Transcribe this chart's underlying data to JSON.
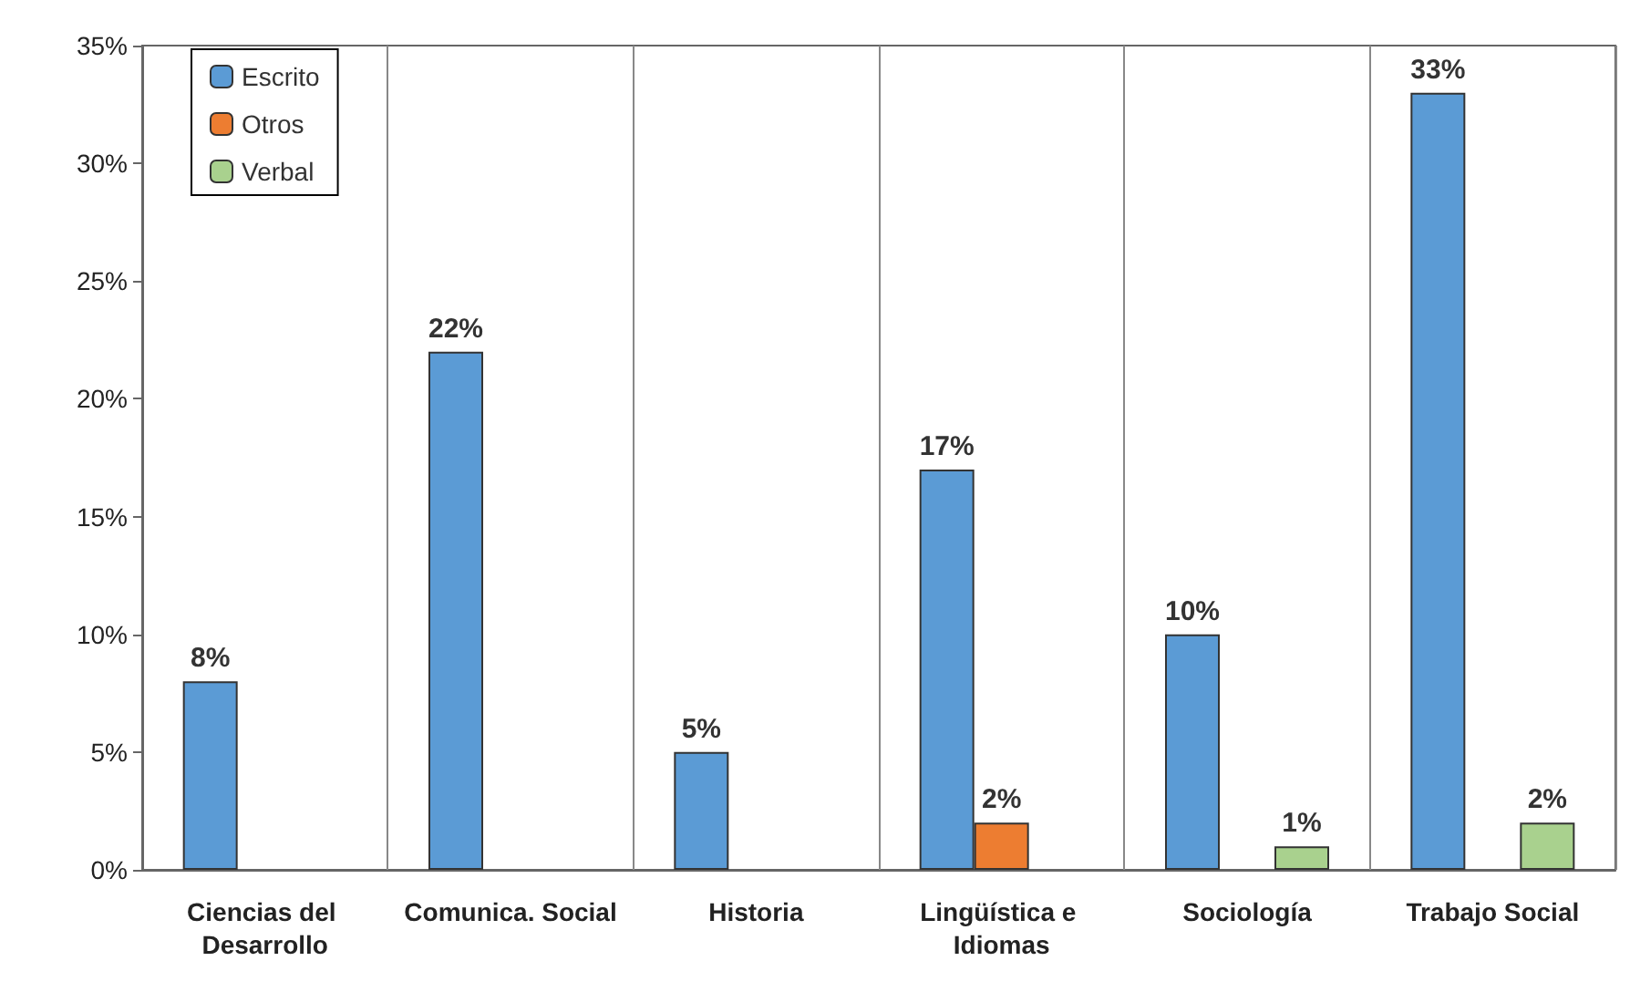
{
  "chart_data": {
    "type": "bar",
    "categories": [
      "Ciencias del Desarrollo",
      "Comunica. Social",
      "Historia",
      "Lingüística e Idiomas",
      "Sociología",
      "Trabajo Social"
    ],
    "series": [
      {
        "name": "Escrito",
        "color": "#5b9bd5",
        "values": [
          8,
          22,
          5,
          17,
          10,
          33
        ],
        "value_labels": [
          "8%",
          "22%",
          "5%",
          "17%",
          "10%",
          "33%"
        ]
      },
      {
        "name": "Otros",
        "color": "#ed7d31",
        "values": [
          null,
          null,
          null,
          2,
          null,
          null
        ],
        "value_labels": [
          null,
          null,
          null,
          "2%",
          null,
          null
        ]
      },
      {
        "name": "Verbal",
        "color": "#a9d18e",
        "values": [
          null,
          null,
          null,
          null,
          1,
          2
        ],
        "value_labels": [
          null,
          null,
          null,
          null,
          "1%",
          "2%"
        ]
      }
    ],
    "ylim": [
      0,
      35
    ],
    "yticks": [
      {
        "value": 0,
        "label": "0%"
      },
      {
        "value": 5,
        "label": "5%"
      },
      {
        "value": 10,
        "label": "10%"
      },
      {
        "value": 15,
        "label": "15%"
      },
      {
        "value": 20,
        "label": "20%"
      },
      {
        "value": 25,
        "label": "25%"
      },
      {
        "value": 30,
        "label": "30%"
      },
      {
        "value": 35,
        "label": "35%"
      }
    ],
    "grid": "x",
    "legend": "top left"
  }
}
